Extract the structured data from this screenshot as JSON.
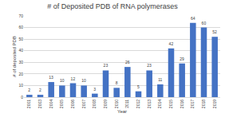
{
  "chart_data": {
    "type": "bar",
    "title": "# of Deposited PDB of RNA polymerases",
    "x_label": "Year",
    "y_label": "# of deposited PDB",
    "categories": [
      "2001",
      "2003",
      "2004",
      "2005",
      "2006",
      "2007",
      "2008",
      "2009",
      "2010",
      "2011",
      "2012",
      "2013",
      "2014",
      "2015",
      "2016",
      "2017",
      "2018",
      "2019"
    ],
    "values": [
      2,
      2,
      13,
      10,
      12,
      10,
      3,
      23,
      8,
      26,
      5,
      23,
      11,
      42,
      29,
      64,
      60,
      52
    ],
    "color": "#4472c4",
    "ylim": [
      0,
      70
    ],
    "yticks": [
      0,
      10,
      20,
      30,
      40,
      50,
      60,
      70
    ],
    "grid": true,
    "data_labels": true
  }
}
